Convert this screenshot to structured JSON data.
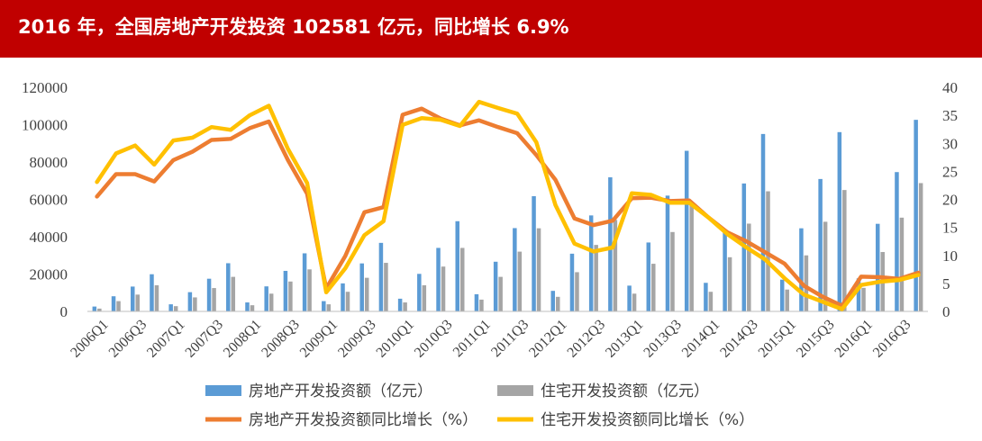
{
  "header": {
    "title": "2016 年，全国房地产开发投资 102581 亿元，同比增长 6.9%"
  },
  "colors": {
    "header_bg": "#c00000",
    "bar_total": "#5b9bd5",
    "bar_residential": "#a5a5a5",
    "line_total": "#ed7d31",
    "line_residential": "#ffc000"
  },
  "chart_data": {
    "type": "bar",
    "categories": [
      "2006Q1",
      "2006Q2",
      "2006Q3",
      "2006Q4",
      "2007Q1",
      "2007Q2",
      "2007Q3",
      "2007Q4",
      "2008Q1",
      "2008Q2",
      "2008Q3",
      "2008Q4",
      "2009Q1",
      "2009Q2",
      "2009Q3",
      "2009Q4",
      "2010Q1",
      "2010Q2",
      "2010Q3",
      "2010Q4",
      "2011Q1",
      "2011Q2",
      "2011Q3",
      "2011Q4",
      "2012Q1",
      "2012Q2",
      "2012Q3",
      "2012Q4",
      "2013Q1",
      "2013Q2",
      "2013Q3",
      "2013Q4",
      "2014Q1",
      "2014Q2",
      "2014Q3",
      "2014Q4",
      "2015Q1",
      "2015Q2",
      "2015Q3",
      "2015Q4",
      "2016Q1",
      "2016Q2",
      "2016Q3",
      "2016Q4"
    ],
    "x_tick_labels": [
      "2006Q1",
      "2006Q3",
      "2007Q1",
      "2007Q3",
      "2008Q1",
      "2008Q3",
      "2009Q1",
      "2009Q3",
      "2010Q1",
      "2010Q3",
      "2011Q1",
      "2011Q3",
      "2012Q1",
      "2012Q3",
      "2013Q1",
      "2013Q3",
      "2014Q1",
      "2014Q3",
      "2015Q1",
      "2015Q3",
      "2016Q1",
      "2016Q3"
    ],
    "y_left": {
      "min": 0,
      "max": 120000,
      "ticks": [
        "0",
        "20000",
        "40000",
        "60000",
        "80000",
        "100000",
        "120000"
      ]
    },
    "y_right": {
      "min": 0,
      "max": 40,
      "ticks": [
        "0",
        "5",
        "10",
        "15",
        "20",
        "25",
        "30",
        "35",
        "40"
      ]
    },
    "grid": false,
    "legend_position": "bottom",
    "series": [
      {
        "name": "房地产开发投资额（亿元）",
        "type": "bar",
        "axis": "left",
        "values": [
          2600,
          8100,
          13300,
          19900,
          3800,
          10300,
          17500,
          25800,
          4800,
          13400,
          21700,
          31100,
          5500,
          15000,
          25700,
          36700,
          6800,
          20100,
          34000,
          48300,
          9200,
          26600,
          44600,
          61700,
          11000,
          30900,
          51400,
          71800,
          13800,
          36900,
          62000,
          86000,
          15300,
          42500,
          68500,
          95000,
          17000,
          44500,
          70900,
          96000,
          17700,
          46900,
          74600,
          102581
        ]
      },
      {
        "name": "住宅开发投资额（亿元）",
        "type": "bar",
        "axis": "left",
        "values": [
          1500,
          5500,
          9000,
          14000,
          2800,
          7500,
          12500,
          18500,
          3300,
          9500,
          16000,
          22500,
          3800,
          10500,
          18000,
          26000,
          4800,
          14000,
          24000,
          34000,
          6300,
          18500,
          32000,
          44500,
          7800,
          21000,
          35600,
          49000,
          9500,
          25500,
          42500,
          58500,
          10500,
          29000,
          47000,
          64300,
          11700,
          30000,
          48000,
          65000,
          12600,
          31800,
          50200,
          68700
        ]
      },
      {
        "name": "房地产开发投资额同比增长（%）",
        "type": "line",
        "axis": "right",
        "values": [
          20.5,
          24.5,
          24.5,
          23.2,
          27.0,
          28.5,
          30.6,
          30.8,
          32.7,
          33.9,
          27.0,
          21.0,
          4.1,
          9.9,
          17.7,
          18.6,
          35.1,
          36.2,
          34.4,
          33.2,
          34.1,
          32.9,
          31.8,
          27.9,
          23.5,
          16.6,
          15.4,
          16.2,
          20.2,
          20.3,
          19.7,
          19.8,
          16.8,
          14.1,
          12.5,
          10.5,
          8.5,
          4.6,
          2.6,
          1.0,
          6.2,
          6.1,
          5.8,
          6.9
        ]
      },
      {
        "name": "住宅开发投资额同比增长（%）",
        "type": "line",
        "axis": "right",
        "values": [
          23.1,
          28.2,
          29.6,
          26.2,
          30.5,
          31.0,
          32.9,
          32.4,
          35.0,
          36.7,
          29.0,
          22.9,
          3.4,
          7.7,
          13.6,
          16.1,
          33.3,
          34.5,
          34.2,
          33.1,
          37.4,
          36.3,
          35.3,
          30.2,
          19.0,
          12.1,
          10.7,
          11.4,
          21.1,
          20.8,
          19.4,
          19.4,
          16.8,
          13.8,
          11.4,
          9.2,
          5.9,
          3.0,
          1.7,
          0.4,
          4.7,
          5.3,
          5.6,
          6.5
        ]
      }
    ]
  }
}
